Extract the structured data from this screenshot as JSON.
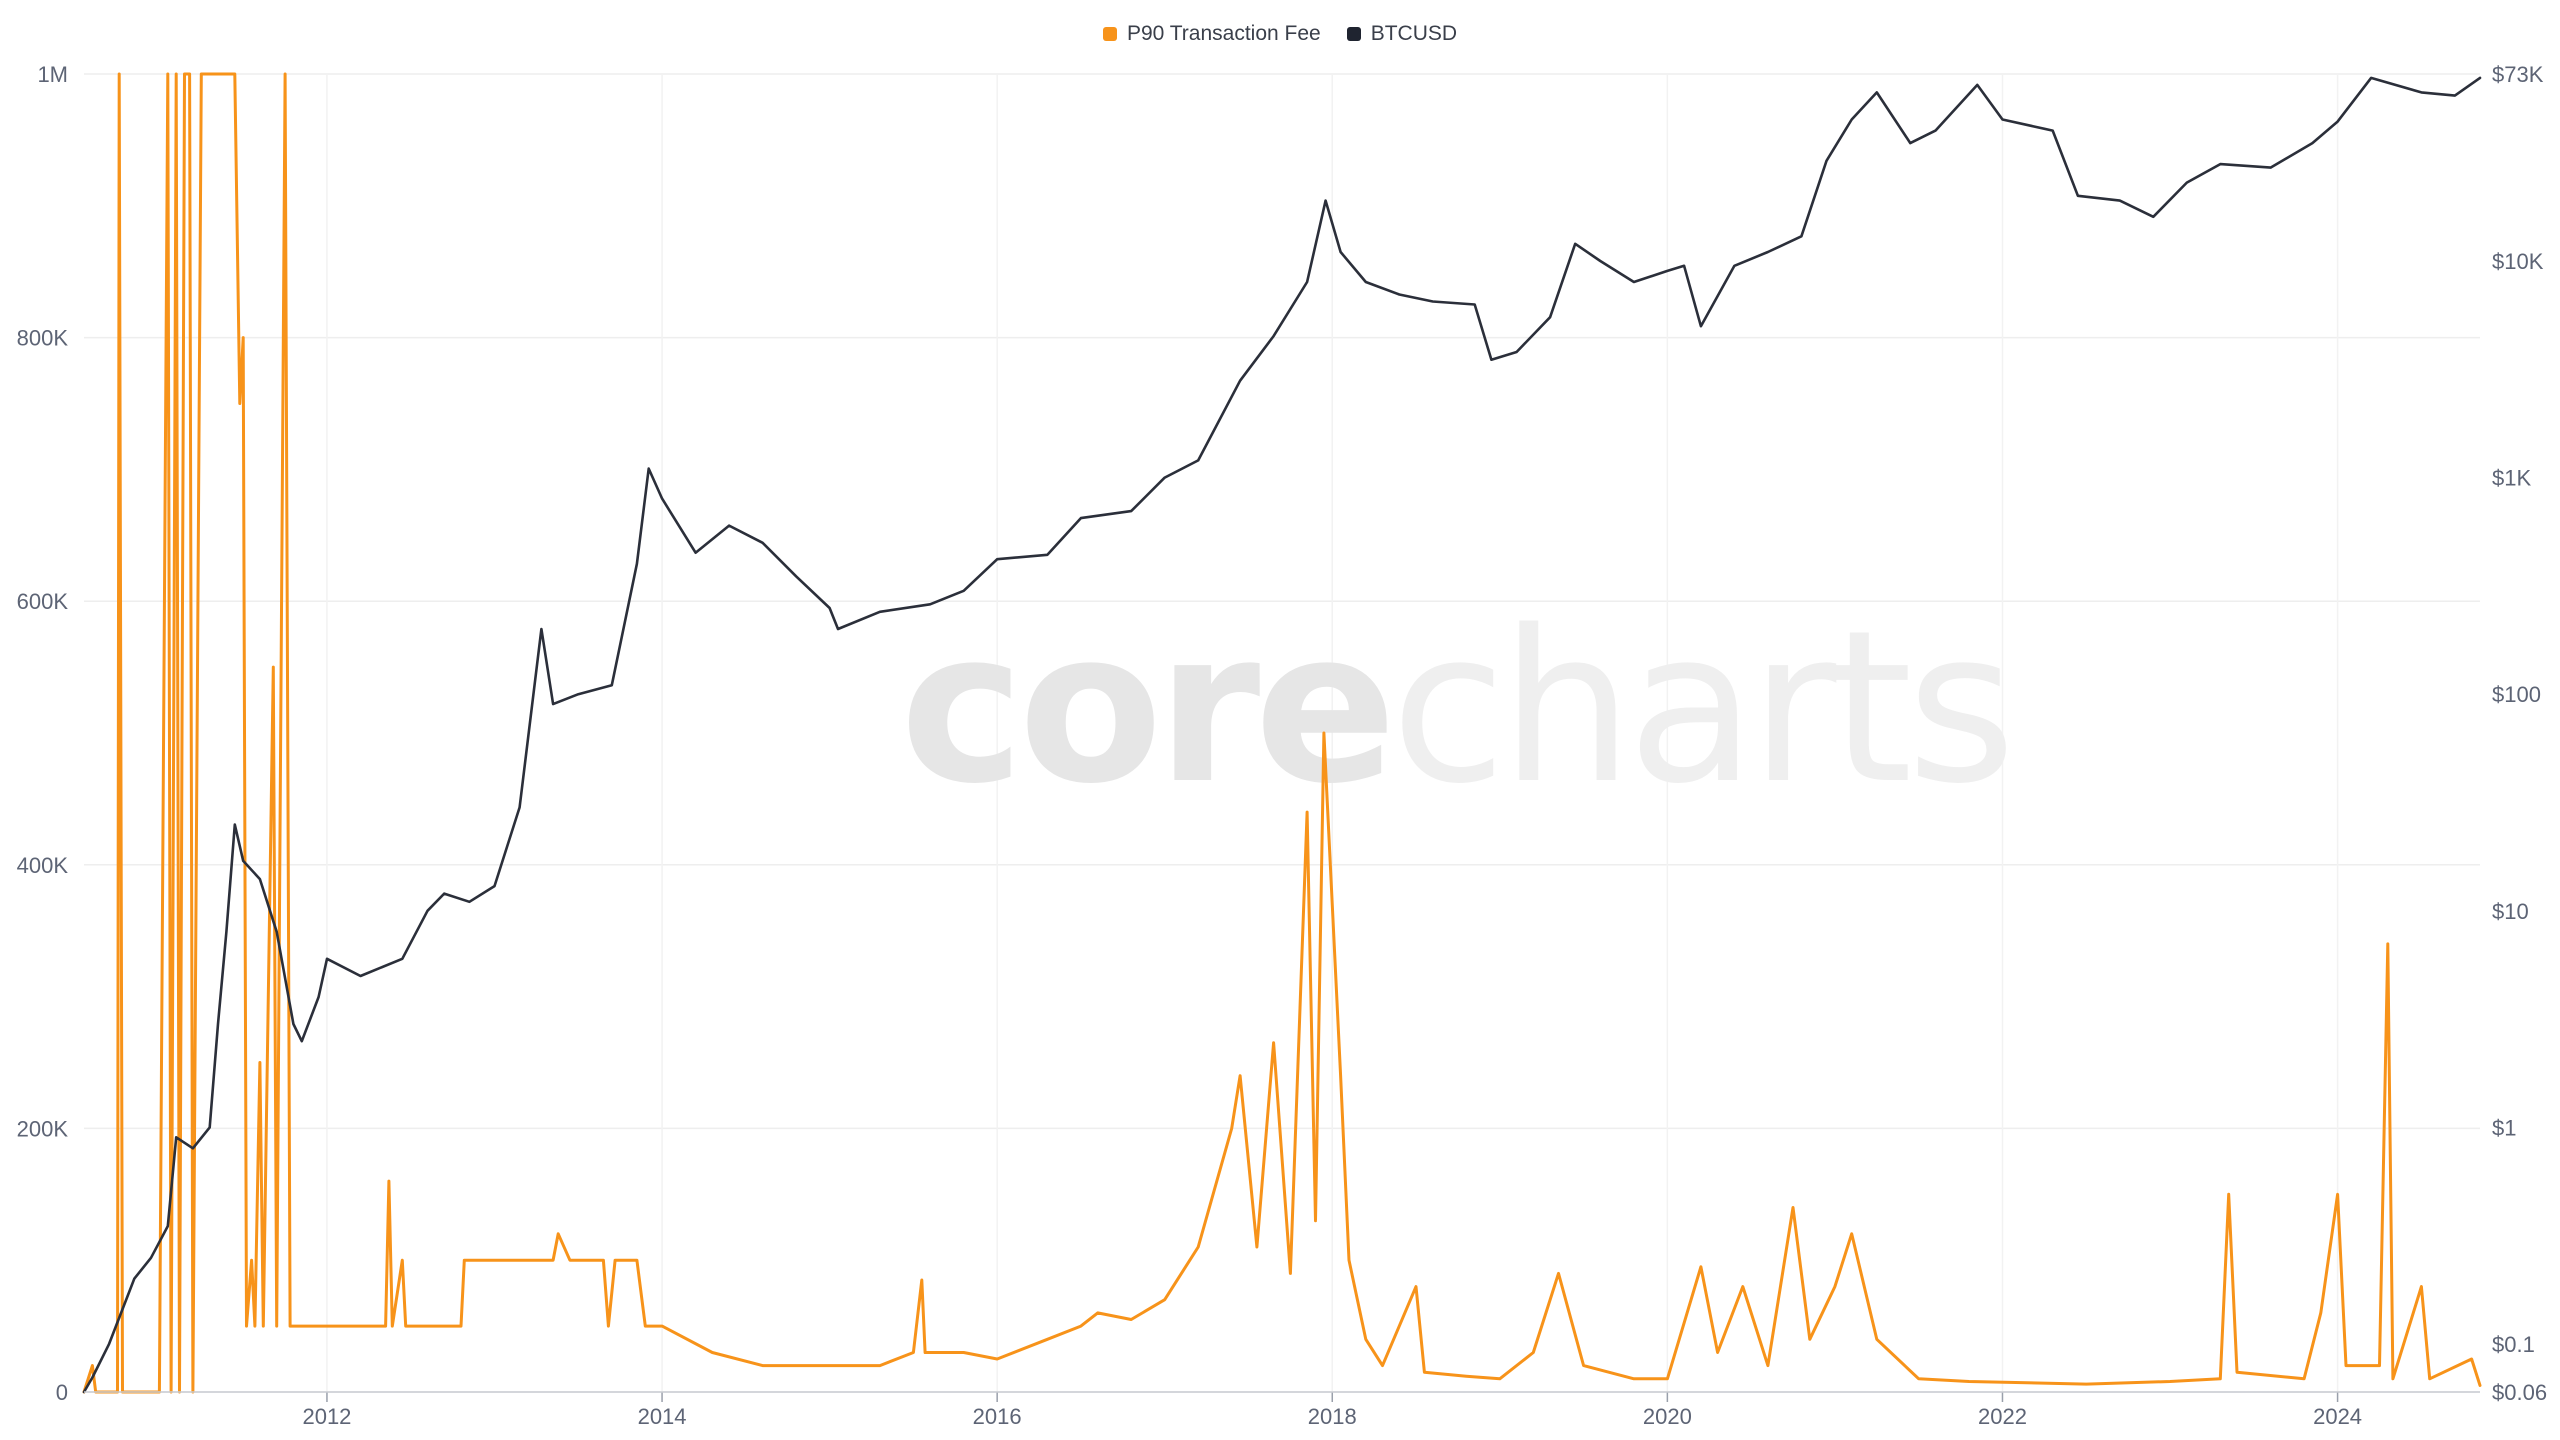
{
  "legend": [
    {
      "label": "P90 Transaction Fee",
      "color": "#f7931a"
    },
    {
      "label": "BTCUSD",
      "color": "#1f2430"
    }
  ],
  "watermark": {
    "part1": "core",
    "part2": "charts"
  },
  "chart_data": {
    "type": "line",
    "grid": true,
    "legend_position": "top-center",
    "x_axis": {
      "ticks": [
        "2012",
        "2014",
        "2016",
        "2018",
        "2020",
        "2022",
        "2024"
      ],
      "range": [
        2010.55,
        2024.85
      ]
    },
    "y_left": {
      "ticks": [
        "0",
        "200K",
        "400K",
        "600K",
        "800K",
        "1M"
      ],
      "range": [
        0,
        1000000
      ]
    },
    "y_right": {
      "scale": "log",
      "ticks": [
        "$0.06",
        "$0.1",
        "$1",
        "$10",
        "$100",
        "$1K",
        "$10K",
        "$73K"
      ],
      "tick_values": [
        0.06,
        0.1,
        1,
        10,
        100,
        1000,
        10000,
        73000
      ],
      "range": [
        0.06,
        73000
      ]
    },
    "series": [
      {
        "name": "P90 Transaction Fee",
        "axis": "left",
        "color": "#f7931a",
        "points": [
          [
            2010.55,
            0
          ],
          [
            2010.6,
            20000
          ],
          [
            2010.62,
            0
          ],
          [
            2010.75,
            0
          ],
          [
            2010.76,
            1000000
          ],
          [
            2010.78,
            0
          ],
          [
            2011.0,
            0
          ],
          [
            2011.05,
            1000000
          ],
          [
            2011.07,
            0
          ],
          [
            2011.1,
            1000000
          ],
          [
            2011.12,
            0
          ],
          [
            2011.15,
            1000000
          ],
          [
            2011.18,
            1000000
          ],
          [
            2011.2,
            0
          ],
          [
            2011.25,
            1000000
          ],
          [
            2011.45,
            1000000
          ],
          [
            2011.48,
            750000
          ],
          [
            2011.5,
            800000
          ],
          [
            2011.52,
            50000
          ],
          [
            2011.55,
            100000
          ],
          [
            2011.57,
            50000
          ],
          [
            2011.6,
            250000
          ],
          [
            2011.62,
            50000
          ],
          [
            2011.68,
            550000
          ],
          [
            2011.7,
            50000
          ],
          [
            2011.75,
            1000000
          ],
          [
            2011.78,
            50000
          ],
          [
            2012.0,
            50000
          ],
          [
            2012.35,
            50000
          ],
          [
            2012.37,
            160000
          ],
          [
            2012.39,
            50000
          ],
          [
            2012.45,
            100000
          ],
          [
            2012.47,
            50000
          ],
          [
            2012.8,
            50000
          ],
          [
            2012.82,
            100000
          ],
          [
            2013.35,
            100000
          ],
          [
            2013.38,
            120000
          ],
          [
            2013.45,
            100000
          ],
          [
            2013.65,
            100000
          ],
          [
            2013.68,
            50000
          ],
          [
            2013.72,
            100000
          ],
          [
            2013.85,
            100000
          ],
          [
            2013.9,
            50000
          ],
          [
            2014.0,
            50000
          ],
          [
            2014.3,
            30000
          ],
          [
            2014.6,
            20000
          ],
          [
            2015.0,
            20000
          ],
          [
            2015.3,
            20000
          ],
          [
            2015.5,
            30000
          ],
          [
            2015.55,
            85000
          ],
          [
            2015.57,
            30000
          ],
          [
            2015.8,
            30000
          ],
          [
            2016.0,
            25000
          ],
          [
            2016.3,
            40000
          ],
          [
            2016.5,
            50000
          ],
          [
            2016.6,
            60000
          ],
          [
            2016.8,
            55000
          ],
          [
            2017.0,
            70000
          ],
          [
            2017.2,
            110000
          ],
          [
            2017.4,
            200000
          ],
          [
            2017.45,
            240000
          ],
          [
            2017.55,
            110000
          ],
          [
            2017.65,
            265000
          ],
          [
            2017.75,
            90000
          ],
          [
            2017.85,
            440000
          ],
          [
            2017.9,
            130000
          ],
          [
            2017.95,
            500000
          ],
          [
            2018.05,
            240000
          ],
          [
            2018.1,
            100000
          ],
          [
            2018.2,
            40000
          ],
          [
            2018.3,
            20000
          ],
          [
            2018.5,
            80000
          ],
          [
            2018.55,
            15000
          ],
          [
            2018.8,
            12000
          ],
          [
            2019.0,
            10000
          ],
          [
            2019.2,
            30000
          ],
          [
            2019.35,
            90000
          ],
          [
            2019.5,
            20000
          ],
          [
            2019.8,
            10000
          ],
          [
            2020.0,
            10000
          ],
          [
            2020.2,
            95000
          ],
          [
            2020.3,
            30000
          ],
          [
            2020.45,
            80000
          ],
          [
            2020.6,
            20000
          ],
          [
            2020.75,
            140000
          ],
          [
            2020.85,
            40000
          ],
          [
            2021.0,
            80000
          ],
          [
            2021.1,
            120000
          ],
          [
            2021.25,
            40000
          ],
          [
            2021.5,
            10000
          ],
          [
            2021.8,
            8000
          ],
          [
            2022.5,
            6000
          ],
          [
            2023.0,
            8000
          ],
          [
            2023.3,
            10000
          ],
          [
            2023.35,
            150000
          ],
          [
            2023.4,
            15000
          ],
          [
            2023.8,
            10000
          ],
          [
            2023.9,
            60000
          ],
          [
            2024.0,
            150000
          ],
          [
            2024.05,
            20000
          ],
          [
            2024.25,
            20000
          ],
          [
            2024.3,
            340000
          ],
          [
            2024.33,
            10000
          ],
          [
            2024.5,
            80000
          ],
          [
            2024.55,
            10000
          ],
          [
            2024.8,
            25000
          ],
          [
            2024.85,
            5000
          ]
        ]
      },
      {
        "name": "BTCUSD",
        "axis": "right",
        "color": "#2b2f3a",
        "points": [
          [
            2010.55,
            0.06
          ],
          [
            2010.6,
            0.07
          ],
          [
            2010.7,
            0.1
          ],
          [
            2010.85,
            0.2
          ],
          [
            2010.95,
            0.25
          ],
          [
            2011.05,
            0.35
          ],
          [
            2011.1,
            0.9
          ],
          [
            2011.2,
            0.8
          ],
          [
            2011.3,
            1.0
          ],
          [
            2011.35,
            3.0
          ],
          [
            2011.4,
            8.0
          ],
          [
            2011.45,
            25.0
          ],
          [
            2011.5,
            17.0
          ],
          [
            2011.6,
            14.0
          ],
          [
            2011.7,
            8.0
          ],
          [
            2011.8,
            3.0
          ],
          [
            2011.85,
            2.5
          ],
          [
            2011.95,
            4.0
          ],
          [
            2012.0,
            6.0
          ],
          [
            2012.2,
            5.0
          ],
          [
            2012.45,
            6.0
          ],
          [
            2012.6,
            10.0
          ],
          [
            2012.7,
            12.0
          ],
          [
            2012.85,
            11.0
          ],
          [
            2013.0,
            13.0
          ],
          [
            2013.15,
            30.0
          ],
          [
            2013.28,
            200.0
          ],
          [
            2013.35,
            90.0
          ],
          [
            2013.5,
            100.0
          ],
          [
            2013.7,
            110.0
          ],
          [
            2013.85,
            400.0
          ],
          [
            2013.92,
            1100.0
          ],
          [
            2014.0,
            800.0
          ],
          [
            2014.1,
            600.0
          ],
          [
            2014.2,
            450.0
          ],
          [
            2014.4,
            600.0
          ],
          [
            2014.6,
            500.0
          ],
          [
            2014.8,
            350.0
          ],
          [
            2015.0,
            250.0
          ],
          [
            2015.05,
            200.0
          ],
          [
            2015.3,
            240.0
          ],
          [
            2015.6,
            260.0
          ],
          [
            2015.8,
            300.0
          ],
          [
            2016.0,
            420.0
          ],
          [
            2016.3,
            440.0
          ],
          [
            2016.5,
            650.0
          ],
          [
            2016.8,
            700.0
          ],
          [
            2017.0,
            1000.0
          ],
          [
            2017.2,
            1200.0
          ],
          [
            2017.45,
            2800.0
          ],
          [
            2017.65,
            4500.0
          ],
          [
            2017.85,
            8000.0
          ],
          [
            2017.96,
            19000.0
          ],
          [
            2018.05,
            11000.0
          ],
          [
            2018.2,
            8000.0
          ],
          [
            2018.4,
            7000.0
          ],
          [
            2018.6,
            6500.0
          ],
          [
            2018.85,
            6300.0
          ],
          [
            2018.95,
            3500.0
          ],
          [
            2019.1,
            3800.0
          ],
          [
            2019.3,
            5500.0
          ],
          [
            2019.45,
            12000.0
          ],
          [
            2019.6,
            10000.0
          ],
          [
            2019.8,
            8000.0
          ],
          [
            2020.0,
            9000.0
          ],
          [
            2020.1,
            9500.0
          ],
          [
            2020.2,
            5000.0
          ],
          [
            2020.4,
            9500.0
          ],
          [
            2020.6,
            11000.0
          ],
          [
            2020.8,
            13000.0
          ],
          [
            2020.95,
            29000.0
          ],
          [
            2021.1,
            45000.0
          ],
          [
            2021.25,
            60000.0
          ],
          [
            2021.45,
            35000.0
          ],
          [
            2021.6,
            40000.0
          ],
          [
            2021.85,
            65000.0
          ],
          [
            2022.0,
            45000.0
          ],
          [
            2022.3,
            40000.0
          ],
          [
            2022.45,
            20000.0
          ],
          [
            2022.7,
            19000.0
          ],
          [
            2022.9,
            16000.0
          ],
          [
            2023.1,
            23000.0
          ],
          [
            2023.3,
            28000.0
          ],
          [
            2023.6,
            27000.0
          ],
          [
            2023.85,
            35000.0
          ],
          [
            2024.0,
            44000.0
          ],
          [
            2024.2,
            70000.0
          ],
          [
            2024.5,
            60000.0
          ],
          [
            2024.7,
            58000.0
          ],
          [
            2024.85,
            70000.0
          ]
        ]
      }
    ]
  }
}
